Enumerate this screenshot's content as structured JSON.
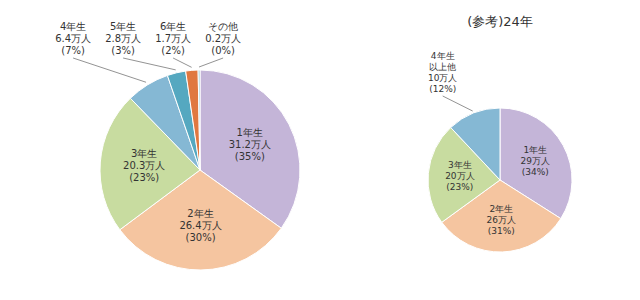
{
  "chart_data": [
    {
      "type": "pie",
      "categories": [
        "1年生",
        "2年生",
        "3年生",
        "4年生",
        "5年生",
        "6年生",
        "その他"
      ],
      "values": [
        35,
        30,
        23,
        7,
        3,
        2,
        0.3
      ],
      "value_labels": [
        "31.2万人\n(35%)",
        "26.4万人\n(30%)",
        "20.3万人\n(23%)",
        "6.4万人\n(7%)",
        "2.8万人\n(3%)",
        "1.7万人\n(2%)",
        "0.2万人\n(0%)"
      ],
      "colors": [
        "#c4b5d8",
        "#f5c5a0",
        "#c8dca0",
        "#85b8d4",
        "#55a8c0",
        "#e07840",
        "#90c8d0"
      ],
      "data_labels": true
    },
    {
      "type": "pie",
      "title": "(参考)24年",
      "categories": [
        "1年生",
        "2年生",
        "3年生",
        "4年生\n以上他"
      ],
      "values": [
        34,
        31,
        23,
        12
      ],
      "value_labels": [
        "29万人\n(34%)",
        "26万人\n(31%)",
        "20万人\n(23%)",
        "10万人\n(12%)"
      ],
      "colors": [
        "#c4b5d8",
        "#f5c5a0",
        "#c8dca0",
        "#85b8d4"
      ],
      "data_labels": true
    }
  ]
}
